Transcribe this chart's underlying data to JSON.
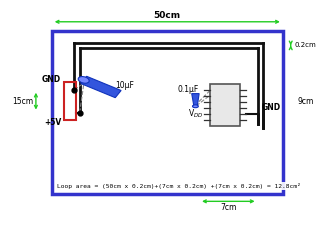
{
  "bg_color": "#ffffff",
  "border_color": "#3333cc",
  "border_lw": 2.5,
  "trace_color": "#111111",
  "trace_lw": 2.0,
  "dim_color": "#22cc22",
  "dim_lw": 1.0,
  "label_50cm": "50cm",
  "label_02cm": "0.2cm",
  "label_15cm": "15cm",
  "label_9cm": "9cm",
  "label_7cm": "7cm",
  "label_gnd_left": "GND",
  "label_5v": "+5V",
  "label_gnd_right": "GND",
  "label_10uf": "10μF",
  "label_01uf": "0.1μF",
  "label_vdd": "V$_{DD}$",
  "loop_text": "Loop area = (50cm x 0.2cm)+(7cm x 0.2cm) +(7cm x 0.2cm) = 12.8cm²",
  "connector_rect_color": "#cc2222"
}
